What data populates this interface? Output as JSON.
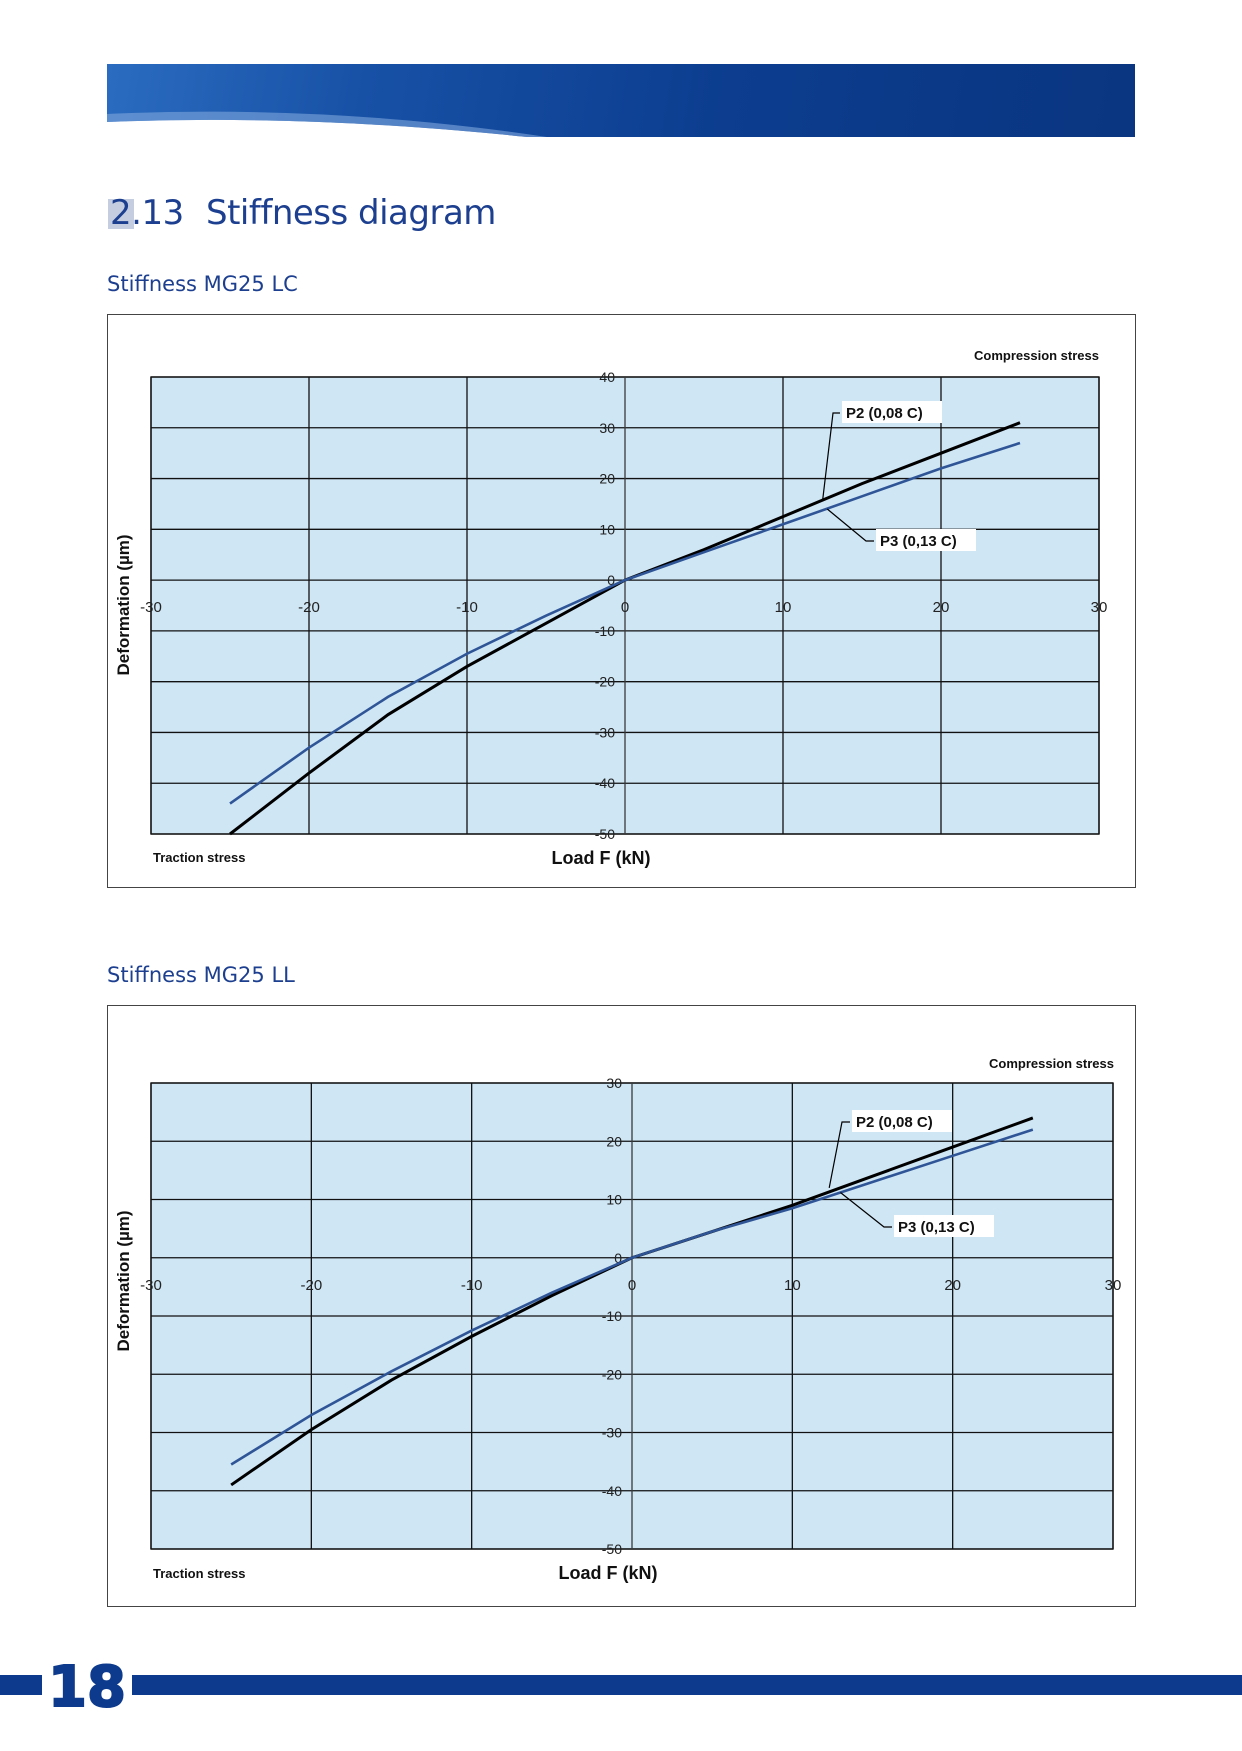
{
  "header": {
    "section_number": "2.13",
    "section_title": "Stiffness diagram"
  },
  "colors": {
    "brand_blue": "#0d3a8c",
    "plot_bg": "#cfe6f5",
    "series_p2": "#000000",
    "series_p3": "#2f5597"
  },
  "footer": {
    "page_number": "18"
  },
  "charts": [
    {
      "subtitle": "Stiffness MG25 LC"
    },
    {
      "subtitle": "Stiffness  MG25 LL"
    }
  ],
  "chart_data": [
    {
      "type": "line",
      "xlabel": "Load F (kN)",
      "ylabel": "Deformation  (µm)",
      "xlim": [
        -30,
        30
      ],
      "ylim": [
        -50,
        40
      ],
      "xticks": [
        -30,
        -20,
        -10,
        0,
        10,
        20,
        30
      ],
      "yticks": [
        40,
        30,
        20,
        10,
        0,
        -10,
        -20,
        -30,
        -40,
        -50
      ],
      "grid": true,
      "corner_labels": {
        "top_right": "Compression stress",
        "bottom_left": "Traction stress"
      },
      "series": [
        {
          "name": "P2 (0,08 C)",
          "x": [
            -25,
            -20,
            -15,
            -10,
            -5,
            0,
            5,
            10,
            15,
            20,
            25
          ],
          "y": [
            -50,
            -38,
            -26.5,
            -17,
            -8.5,
            0,
            6,
            12.5,
            19,
            25,
            31
          ]
        },
        {
          "name": "P3 (0,13 C)",
          "x": [
            -25,
            -20,
            -15,
            -10,
            -5,
            0,
            5,
            10,
            15,
            20,
            25
          ],
          "y": [
            -44,
            -33,
            -23,
            -14.5,
            -7,
            0,
            5.5,
            11,
            16.5,
            22,
            27
          ]
        }
      ]
    },
    {
      "type": "line",
      "xlabel": "Load F (kN)",
      "ylabel": "Deformation  (µm)",
      "xlim": [
        -30,
        30
      ],
      "ylim": [
        -50,
        30
      ],
      "xticks": [
        -30,
        -20,
        -10,
        0,
        10,
        20,
        30
      ],
      "yticks": [
        30,
        20,
        10,
        0,
        -10,
        -20,
        -30,
        -40,
        -50
      ],
      "grid": true,
      "corner_labels": {
        "top_right": "Compression stress",
        "bottom_left": "Traction stress"
      },
      "series": [
        {
          "name": "P2 (0,08 C)",
          "x": [
            -25,
            -20,
            -15,
            -10,
            -5,
            0,
            5,
            10,
            15,
            20,
            25
          ],
          "y": [
            -39,
            -29.5,
            -21,
            -13.5,
            -6.5,
            0,
            4.5,
            9,
            14,
            19,
            24
          ]
        },
        {
          "name": "P3 (0,13 C)",
          "x": [
            -25,
            -20,
            -15,
            -10,
            -5,
            0,
            5,
            10,
            15,
            20,
            25
          ],
          "y": [
            -35.5,
            -27,
            -19.5,
            -12.5,
            -6,
            0,
            4.5,
            8.5,
            13,
            17.5,
            22
          ]
        }
      ]
    }
  ]
}
